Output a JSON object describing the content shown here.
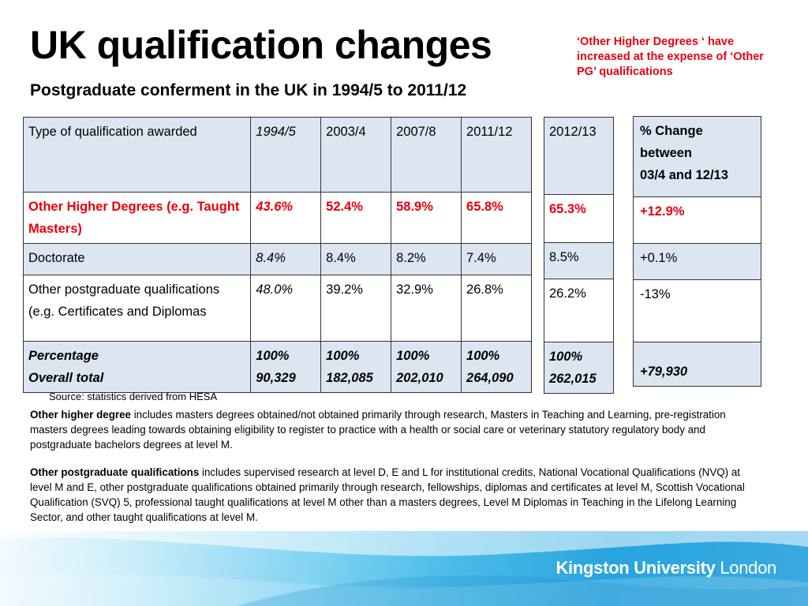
{
  "title": "UK qualification changes",
  "subtitle": "Postgraduate conferment in the UK in 1994/5 to 2011/12",
  "callout": "‘Other Higher Degrees ‘ have increased at the expense of ‘Other PG’ qualifications",
  "main_table": {
    "headers": [
      "Type of qualification awarded",
      "1994/5",
      "2003/4",
      "2007/8",
      "2011/12"
    ],
    "rows": [
      [
        "Other Higher Degrees (e.g. Taught Masters)",
        "43.6%",
        "52.4%",
        "58.9%",
        "65.8%"
      ],
      [
        "Doctorate",
        "8.4%",
        "8.4%",
        "8.2%",
        "7.4%"
      ],
      [
        "Other postgraduate qualifications (e.g. Certificates and Diplomas",
        "48.0%",
        "39.2%",
        "32.9%",
        "26.8%"
      ]
    ],
    "total_labels": [
      "Percentage",
      "Overall total"
    ],
    "totals": [
      [
        "100%",
        "90,329"
      ],
      [
        "100%",
        "182,085"
      ],
      [
        "100%",
        "202,010"
      ],
      [
        "100%",
        "264,090"
      ]
    ]
  },
  "year_table": {
    "header": "2012/13",
    "values": [
      "65.3%",
      "8.5%",
      "26.2%"
    ],
    "total": [
      "100%",
      "262,015"
    ]
  },
  "change_table": {
    "header_lines": [
      "% Change",
      "between",
      "03/4 and 12/13"
    ],
    "values": [
      "+12.9%",
      "+0.1%",
      "-13%"
    ],
    "total": "+79,930"
  },
  "source": "Source: statistics derived from HESA",
  "definitions": [
    {
      "term": "Other higher degree",
      "text": " includes masters degrees obtained/not obtained primarily through research, Masters in Teaching and Learning, pre-registration masters degrees leading towards obtaining eligibility to register to practice with a health or social care or veterinary statutory regulatory body and postgraduate bachelors degrees at level M."
    },
    {
      "term": "Other postgraduate qualifications",
      "text": " includes supervised research at level D, E and L for institutional credits, National Vocational Qualifications (NVQ) at level M and E, other postgraduate qualifications obtained primarily through research, fellowships, diplomas and certificates at level M, Scottish Vocational Qualification (SVQ) 5, professional taught qualifications at level M other than a masters degrees, Level M Diplomas in Teaching in the Lifelong Learning Sector, and other taught qualifications at level M."
    }
  ],
  "footer": {
    "brand": "Kingston University",
    "location": "London"
  }
}
